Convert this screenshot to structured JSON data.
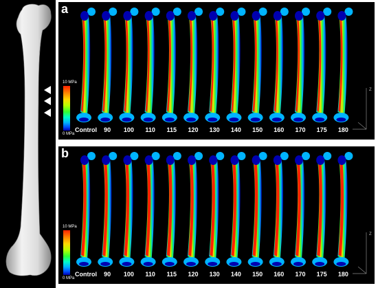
{
  "panels": [
    {
      "id": "a",
      "letter": "a"
    },
    {
      "id": "b",
      "letter": "b"
    }
  ],
  "labels": [
    "Control",
    "90",
    "100",
    "110",
    "115",
    "120",
    "130",
    "140",
    "150",
    "160",
    "170",
    "175",
    "180"
  ],
  "colorbar": {
    "max_label": "10 MPa",
    "min_label": "0 MPa",
    "colors": [
      "#ff2200",
      "#ffd800",
      "#32ff32",
      "#00b4ff",
      "#0000b0"
    ]
  },
  "axis": {
    "z_label": "Z"
  },
  "arrow_count": 3
}
